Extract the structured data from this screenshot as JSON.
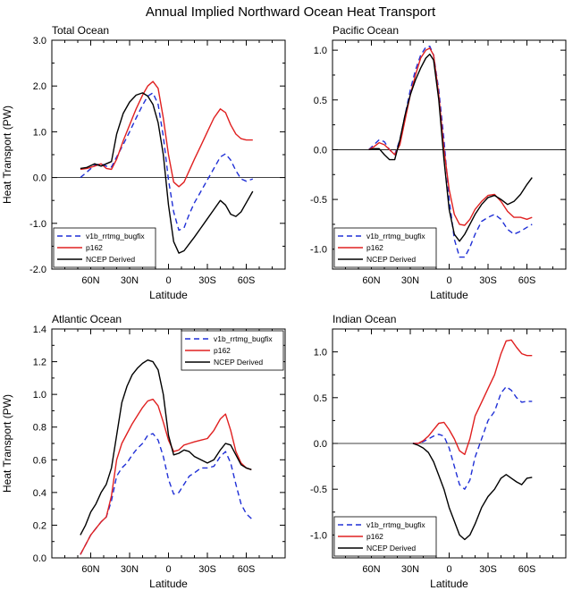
{
  "page": {
    "title": "Annual Implied Northward Ocean Heat Transport"
  },
  "colors": {
    "v1b": "#1f2fd6",
    "p162": "#e02020",
    "ncep": "#000000",
    "zero": "#000000"
  },
  "legend_labels": [
    "v1b_rrtmg_bugfix",
    "p162",
    "NCEP Derived"
  ],
  "chart_data": [
    {
      "type": "line",
      "title": "Total Ocean",
      "xlabel": "Latitude",
      "ylabel": "Heat Transport (PW)",
      "xlim": [
        -90,
        90
      ],
      "ylim": [
        -2.0,
        3.0
      ],
      "yticks": [
        "3.0",
        "2.0",
        "1.0",
        "0.0",
        "-1.0",
        "-2.0"
      ],
      "ytick_values": [
        3.0,
        2.0,
        1.0,
        0.0,
        -1.0,
        -2.0
      ],
      "xticks": [
        "60N",
        "30N",
        "0",
        "30S",
        "60S"
      ],
      "xtick_values": [
        -60,
        -30,
        0,
        30,
        60
      ],
      "zero_line": true,
      "legend_position": "bottom-left",
      "series": [
        {
          "name": "v1b_rrtmg_bugfix",
          "style": "dashed",
          "x": [
            -68,
            -63,
            -57,
            -52,
            -48,
            -44,
            -40,
            -35,
            -30,
            -25,
            -20,
            -16,
            -12,
            -8,
            -4,
            0,
            4,
            8,
            12,
            16,
            20,
            25,
            30,
            35,
            40,
            44,
            48,
            52,
            56,
            60,
            65
          ],
          "y": [
            0.0,
            0.12,
            0.27,
            0.3,
            0.25,
            0.23,
            0.45,
            0.72,
            1.0,
            1.3,
            1.58,
            1.78,
            1.85,
            1.6,
            0.9,
            -0.05,
            -0.75,
            -1.15,
            -1.1,
            -0.8,
            -0.55,
            -0.3,
            -0.05,
            0.2,
            0.45,
            0.52,
            0.38,
            0.15,
            -0.03,
            -0.08,
            -0.03
          ]
        },
        {
          "name": "p162",
          "style": "solid",
          "x": [
            -68,
            -63,
            -57,
            -52,
            -48,
            -44,
            -40,
            -35,
            -30,
            -25,
            -20,
            -16,
            -12,
            -8,
            -4,
            0,
            4,
            8,
            12,
            16,
            20,
            25,
            30,
            35,
            40,
            44,
            48,
            52,
            56,
            60,
            65
          ],
          "y": [
            0.18,
            0.2,
            0.25,
            0.3,
            0.2,
            0.18,
            0.4,
            0.8,
            1.15,
            1.5,
            1.8,
            2.0,
            2.1,
            1.95,
            1.3,
            0.5,
            -0.1,
            -0.2,
            -0.1,
            0.15,
            0.4,
            0.7,
            1.0,
            1.3,
            1.5,
            1.42,
            1.15,
            0.95,
            0.85,
            0.82,
            0.82
          ]
        },
        {
          "name": "NCEP Derived",
          "style": "solid",
          "x": [
            -68,
            -63,
            -57,
            -52,
            -48,
            -44,
            -40,
            -35,
            -30,
            -25,
            -20,
            -16,
            -12,
            -8,
            -4,
            0,
            4,
            8,
            12,
            16,
            20,
            25,
            30,
            35,
            40,
            44,
            48,
            52,
            56,
            60,
            65
          ],
          "y": [
            0.2,
            0.22,
            0.3,
            0.25,
            0.3,
            0.35,
            0.95,
            1.4,
            1.65,
            1.8,
            1.85,
            1.78,
            1.6,
            1.2,
            0.5,
            -0.6,
            -1.4,
            -1.65,
            -1.6,
            -1.45,
            -1.3,
            -1.1,
            -0.9,
            -0.7,
            -0.5,
            -0.6,
            -0.8,
            -0.85,
            -0.75,
            -0.55,
            -0.3
          ]
        }
      ]
    },
    {
      "type": "line",
      "title": "Pacific Ocean",
      "xlabel": "Latitude",
      "ylabel": "",
      "xlim": [
        -90,
        90
      ],
      "ylim": [
        -1.2,
        1.1
      ],
      "yticks": [
        "1.0",
        "0.5",
        "0.0",
        "-0.5",
        "-1.0"
      ],
      "ytick_values": [
        1.0,
        0.5,
        0.0,
        -0.5,
        -1.0
      ],
      "xticks": [
        "60N",
        "30N",
        "0",
        "30S",
        "60S"
      ],
      "xtick_values": [
        -60,
        -30,
        0,
        30,
        60
      ],
      "zero_line": true,
      "legend_position": "bottom-left",
      "series": [
        {
          "name": "v1b_rrtmg_bugfix",
          "style": "dashed",
          "x": [
            -62,
            -58,
            -54,
            -50,
            -46,
            -42,
            -38,
            -34,
            -30,
            -26,
            -22,
            -18,
            -15,
            -12,
            -8,
            -4,
            0,
            4,
            8,
            12,
            16,
            20,
            25,
            30,
            35,
            40,
            45,
            50,
            55,
            60,
            64
          ],
          "y": [
            0.0,
            0.05,
            0.1,
            0.08,
            0.0,
            -0.05,
            0.1,
            0.35,
            0.6,
            0.8,
            0.95,
            1.03,
            1.04,
            0.95,
            0.6,
            0.1,
            -0.5,
            -0.9,
            -1.08,
            -1.08,
            -0.98,
            -0.85,
            -0.72,
            -0.68,
            -0.65,
            -0.7,
            -0.8,
            -0.85,
            -0.82,
            -0.78,
            -0.75
          ]
        },
        {
          "name": "p162",
          "style": "solid",
          "x": [
            -62,
            -58,
            -54,
            -50,
            -46,
            -42,
            -38,
            -34,
            -30,
            -26,
            -22,
            -18,
            -15,
            -12,
            -8,
            -4,
            0,
            4,
            8,
            12,
            16,
            20,
            25,
            30,
            35,
            40,
            45,
            50,
            55,
            60,
            64
          ],
          "y": [
            0.0,
            0.03,
            0.07,
            0.05,
            0.0,
            -0.05,
            0.05,
            0.3,
            0.55,
            0.75,
            0.92,
            1.0,
            1.02,
            0.95,
            0.55,
            0.0,
            -0.4,
            -0.65,
            -0.75,
            -0.76,
            -0.7,
            -0.6,
            -0.52,
            -0.46,
            -0.45,
            -0.52,
            -0.62,
            -0.68,
            -0.68,
            -0.7,
            -0.68
          ]
        },
        {
          "name": "NCEP Derived",
          "style": "solid",
          "x": [
            -62,
            -58,
            -54,
            -50,
            -46,
            -42,
            -38,
            -34,
            -30,
            -26,
            -22,
            -18,
            -15,
            -12,
            -8,
            -4,
            0,
            4,
            8,
            12,
            16,
            20,
            25,
            30,
            35,
            40,
            45,
            50,
            55,
            60,
            64
          ],
          "y": [
            0.0,
            0.01,
            0.01,
            -0.05,
            -0.1,
            -0.1,
            0.1,
            0.35,
            0.55,
            0.7,
            0.82,
            0.92,
            0.96,
            0.9,
            0.5,
            -0.1,
            -0.6,
            -0.85,
            -0.92,
            -0.85,
            -0.75,
            -0.65,
            -0.55,
            -0.48,
            -0.46,
            -0.5,
            -0.55,
            -0.52,
            -0.45,
            -0.35,
            -0.28
          ]
        }
      ]
    },
    {
      "type": "line",
      "title": "Atlantic Ocean",
      "xlabel": "Latitude",
      "ylabel": "Heat Transport (PW)",
      "xlim": [
        -90,
        90
      ],
      "ylim": [
        0.0,
        1.4
      ],
      "yticks": [
        "1.4",
        "1.2",
        "1.0",
        "0.8",
        "0.6",
        "0.4",
        "0.2",
        "0.0"
      ],
      "ytick_values": [
        1.4,
        1.2,
        1.0,
        0.8,
        0.6,
        0.4,
        0.2,
        0.0
      ],
      "xticks": [
        "60N",
        "30N",
        "0",
        "30S",
        "60S"
      ],
      "xtick_values": [
        -60,
        -30,
        0,
        30,
        60
      ],
      "zero_line": false,
      "legend_position": "top-right",
      "series": [
        {
          "name": "v1b_rrtmg_bugfix",
          "style": "dashed",
          "x": [
            -68,
            -64,
            -60,
            -56,
            -52,
            -48,
            -44,
            -40,
            -36,
            -32,
            -28,
            -24,
            -20,
            -16,
            -12,
            -8,
            -4,
            0,
            4,
            8,
            12,
            16,
            20,
            25,
            30,
            35,
            40,
            44,
            48,
            52,
            56,
            60,
            64
          ],
          "y": [
            0.02,
            0.08,
            0.14,
            0.18,
            0.22,
            0.25,
            0.35,
            0.5,
            0.55,
            0.58,
            0.63,
            0.67,
            0.7,
            0.75,
            0.76,
            0.72,
            0.62,
            0.48,
            0.39,
            0.4,
            0.45,
            0.5,
            0.52,
            0.55,
            0.55,
            0.56,
            0.62,
            0.65,
            0.58,
            0.45,
            0.33,
            0.27,
            0.24
          ]
        },
        {
          "name": "p162",
          "style": "solid",
          "x": [
            -68,
            -64,
            -60,
            -56,
            -52,
            -48,
            -44,
            -40,
            -36,
            -32,
            -28,
            -24,
            -20,
            -16,
            -12,
            -8,
            -4,
            0,
            4,
            8,
            12,
            16,
            20,
            25,
            30,
            35,
            40,
            44,
            48,
            52,
            56,
            60,
            64
          ],
          "y": [
            0.02,
            0.08,
            0.14,
            0.18,
            0.22,
            0.25,
            0.38,
            0.6,
            0.7,
            0.76,
            0.82,
            0.87,
            0.92,
            0.96,
            0.97,
            0.93,
            0.83,
            0.72,
            0.65,
            0.66,
            0.69,
            0.7,
            0.71,
            0.72,
            0.73,
            0.78,
            0.85,
            0.88,
            0.78,
            0.65,
            0.58,
            0.55,
            0.54
          ]
        },
        {
          "name": "NCEP Derived",
          "style": "solid",
          "x": [
            -68,
            -64,
            -60,
            -56,
            -52,
            -48,
            -44,
            -40,
            -36,
            -32,
            -28,
            -24,
            -20,
            -16,
            -12,
            -8,
            -4,
            0,
            4,
            8,
            12,
            16,
            20,
            25,
            30,
            35,
            40,
            44,
            48,
            52,
            56,
            60,
            64
          ],
          "y": [
            0.14,
            0.2,
            0.28,
            0.33,
            0.4,
            0.45,
            0.55,
            0.75,
            0.95,
            1.05,
            1.12,
            1.16,
            1.19,
            1.21,
            1.2,
            1.15,
            1.0,
            0.75,
            0.63,
            0.64,
            0.66,
            0.65,
            0.62,
            0.6,
            0.58,
            0.6,
            0.66,
            0.7,
            0.69,
            0.63,
            0.57,
            0.55,
            0.54
          ]
        }
      ]
    },
    {
      "type": "line",
      "title": "Indian Ocean",
      "xlabel": "Latitude",
      "ylabel": "",
      "xlim": [
        -90,
        90
      ],
      "ylim": [
        -1.25,
        1.25
      ],
      "yticks": [
        "1.0",
        "0.5",
        "0.0",
        "-0.5",
        "-1.0"
      ],
      "ytick_values": [
        1.0,
        0.5,
        0.0,
        -0.5,
        -1.0
      ],
      "xticks": [
        "60N",
        "30N",
        "0",
        "30S",
        "60S"
      ],
      "xtick_values": [
        -60,
        -30,
        0,
        30,
        60
      ],
      "zero_line": true,
      "legend_position": "bottom-left",
      "series": [
        {
          "name": "v1b_rrtmg_bugfix",
          "style": "dashed",
          "x": [
            -28,
            -24,
            -20,
            -16,
            -12,
            -8,
            -4,
            0,
            4,
            8,
            12,
            16,
            20,
            25,
            30,
            35,
            40,
            44,
            48,
            52,
            56,
            60,
            64
          ],
          "y": [
            0.0,
            0.0,
            0.02,
            0.05,
            0.08,
            0.1,
            0.08,
            -0.05,
            -0.25,
            -0.45,
            -0.5,
            -0.4,
            -0.15,
            0.05,
            0.25,
            0.35,
            0.55,
            0.62,
            0.58,
            0.5,
            0.45,
            0.46,
            0.46
          ]
        },
        {
          "name": "p162",
          "style": "solid",
          "x": [
            -28,
            -24,
            -20,
            -16,
            -12,
            -8,
            -4,
            0,
            4,
            8,
            12,
            16,
            20,
            25,
            30,
            35,
            40,
            44,
            48,
            52,
            56,
            60,
            64
          ],
          "y": [
            0.0,
            0.0,
            0.03,
            0.08,
            0.15,
            0.22,
            0.23,
            0.15,
            0.05,
            -0.08,
            -0.12,
            0.05,
            0.3,
            0.45,
            0.6,
            0.75,
            0.98,
            1.12,
            1.13,
            1.05,
            0.98,
            0.96,
            0.96
          ]
        },
        {
          "name": "NCEP Derived",
          "style": "solid",
          "x": [
            -28,
            -24,
            -20,
            -16,
            -12,
            -8,
            -4,
            0,
            4,
            8,
            12,
            16,
            20,
            25,
            30,
            35,
            40,
            44,
            48,
            52,
            56,
            60,
            64
          ],
          "y": [
            0.0,
            -0.02,
            -0.05,
            -0.1,
            -0.2,
            -0.35,
            -0.5,
            -0.7,
            -0.85,
            -1.0,
            -1.05,
            -1.0,
            -0.88,
            -0.7,
            -0.58,
            -0.5,
            -0.38,
            -0.34,
            -0.38,
            -0.42,
            -0.45,
            -0.38,
            -0.37
          ]
        }
      ]
    }
  ]
}
